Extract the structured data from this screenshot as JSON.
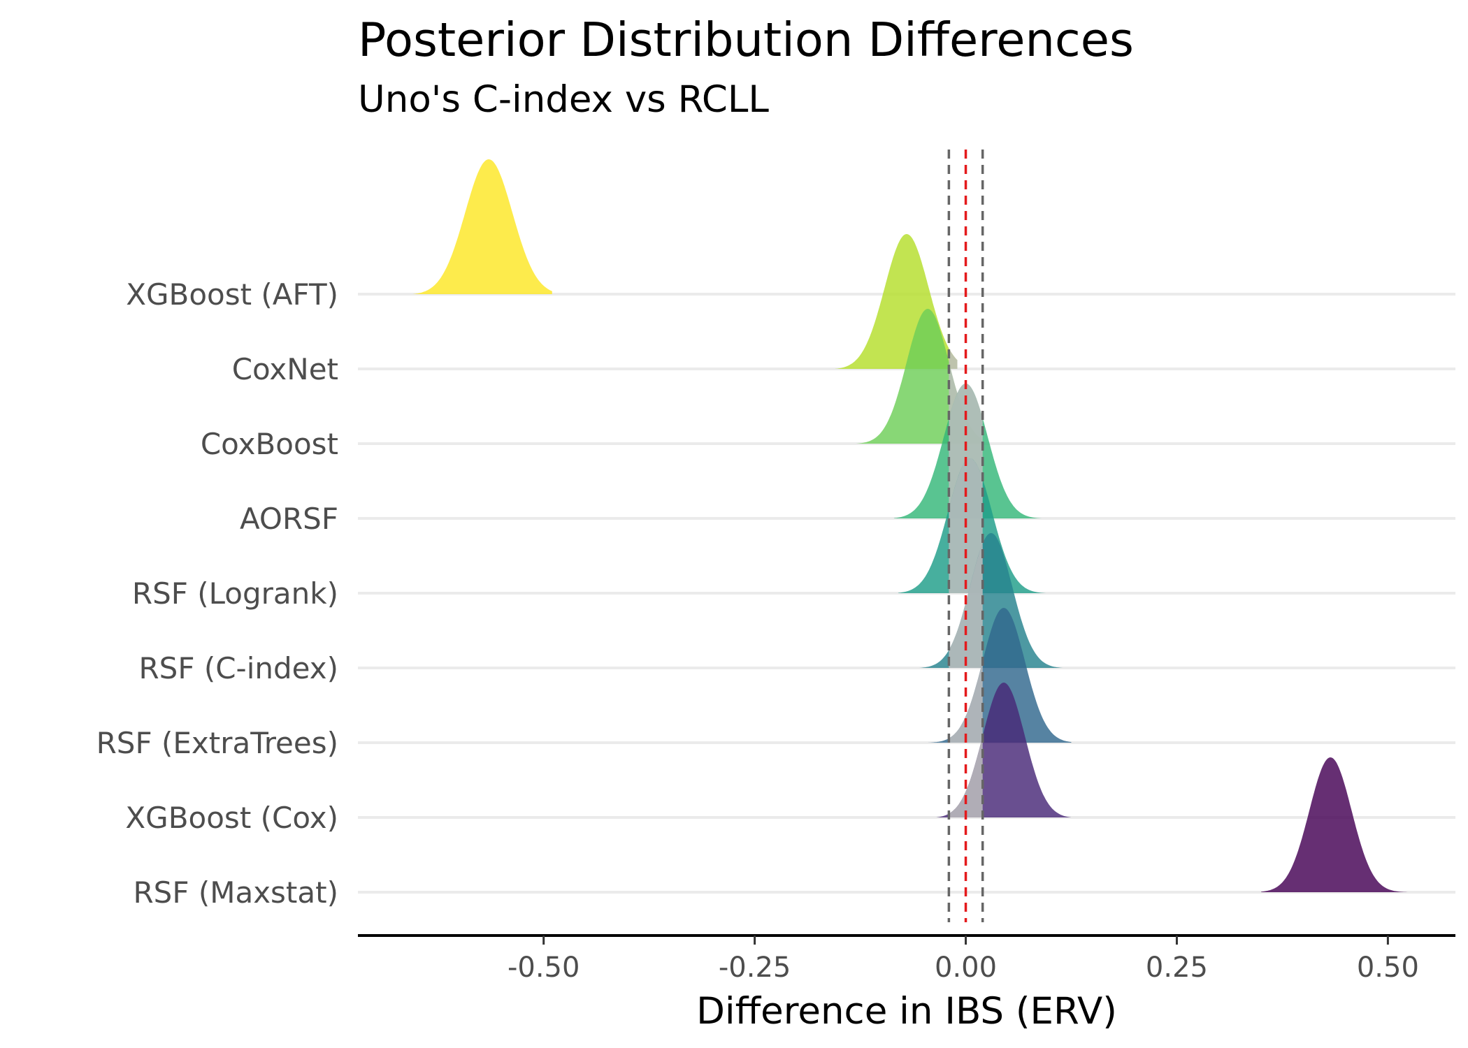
{
  "chart_data": {
    "type": "ridgeline",
    "title": "Posterior Distribution Differences",
    "subtitle": "Uno's C-index vs RCLL",
    "xlabel": "Difference in IBS (ERV)",
    "ylabel": "",
    "xlim": [
      -0.72,
      0.58
    ],
    "xticks": [
      -0.5,
      -0.25,
      0.0,
      0.25,
      0.5
    ],
    "xtick_labels": [
      "-0.50",
      "-0.25",
      "0.00",
      "0.25",
      "0.50"
    ],
    "reference_lines": [
      {
        "x": -0.02,
        "style": "dashed",
        "color": "#666666"
      },
      {
        "x": 0.0,
        "style": "dashed",
        "color": "#e41a1c"
      },
      {
        "x": 0.02,
        "style": "dashed",
        "color": "#666666"
      }
    ],
    "rope_band": [
      -0.02,
      0.02
    ],
    "rope_color": "#bdbdbd",
    "grid": "horizontal",
    "series": [
      {
        "name": "XGBoost (AFT)",
        "color": "#fde725",
        "mean": -0.565,
        "sd": 0.028,
        "range": [
          -0.655,
          -0.49
        ]
      },
      {
        "name": "CoxNet",
        "color": "#b5de2b",
        "mean": -0.07,
        "sd": 0.026,
        "range": [
          -0.155,
          -0.01
        ]
      },
      {
        "name": "CoxBoost",
        "color": "#6ece58",
        "mean": -0.045,
        "sd": 0.025,
        "range": [
          -0.13,
          0.02
        ]
      },
      {
        "name": "AORSF",
        "color": "#35b779",
        "mean": 0.0,
        "sd": 0.026,
        "range": [
          -0.085,
          0.09
        ]
      },
      {
        "name": "RSF (Logrank)",
        "color": "#1f9e89",
        "mean": 0.005,
        "sd": 0.026,
        "range": [
          -0.08,
          0.095
        ]
      },
      {
        "name": "RSF (C-index)",
        "color": "#26828e",
        "mean": 0.03,
        "sd": 0.025,
        "range": [
          -0.055,
          0.115
        ]
      },
      {
        "name": "RSF (ExtraTrees)",
        "color": "#31688e",
        "mean": 0.045,
        "sd": 0.025,
        "range": [
          -0.045,
          0.125
        ]
      },
      {
        "name": "XGBoost (Cox)",
        "color": "#482878",
        "mean": 0.045,
        "sd": 0.025,
        "range": [
          -0.035,
          0.125
        ]
      },
      {
        "name": "RSF (Maxstat)",
        "color": "#440154",
        "mean": 0.432,
        "sd": 0.025,
        "range": [
          0.35,
          0.525
        ]
      }
    ],
    "legend": "none"
  }
}
